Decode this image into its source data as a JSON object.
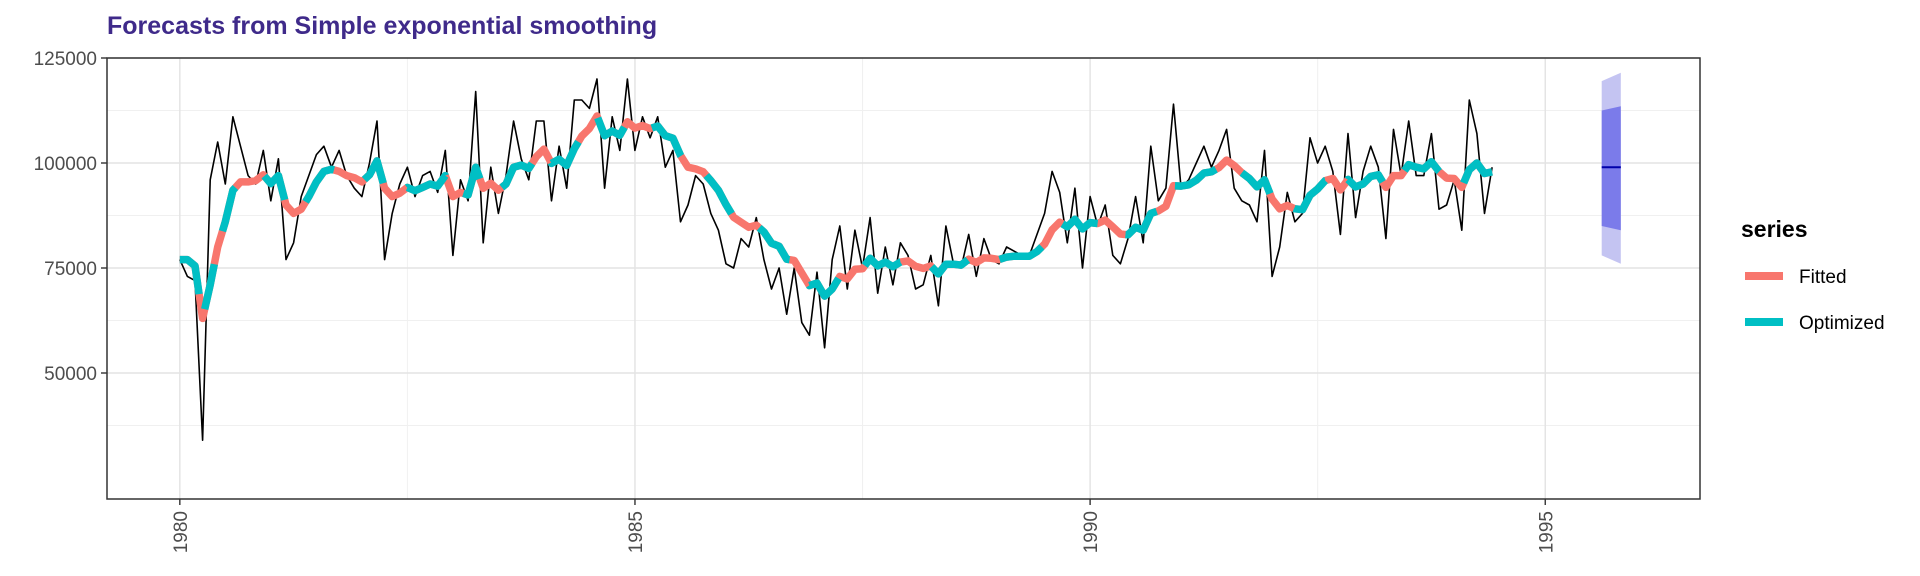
{
  "chart_data": {
    "type": "line",
    "title": "Forecasts from Simple exponential smoothing",
    "xlabel": "",
    "ylabel": "",
    "xlim": [
      1979.2,
      1996.7
    ],
    "ylim": [
      20000,
      125000
    ],
    "x_ticks": [
      1980,
      1985,
      1990,
      1995
    ],
    "x_tick_labels": [
      "1980",
      "1985",
      "1990",
      "1995"
    ],
    "y_ticks": [
      50000,
      75000,
      100000,
      125000
    ],
    "y_tick_labels": [
      "50000",
      "75000",
      "100000",
      "125000"
    ],
    "grid": true,
    "legend": {
      "title": "series",
      "position": "right",
      "entries": [
        {
          "label": "Fitted",
          "color": "#f8766d"
        },
        {
          "label": "Optimized",
          "color": "#00bfc4"
        }
      ]
    },
    "colors": {
      "data": "#000000",
      "fitted": "#f8766d",
      "optimized": "#00bfc4",
      "pi80": "#7b7bea",
      "pi95": "#c4c4f2",
      "forecast": "#0000aa",
      "title": "#3f2a8a"
    },
    "series": [
      {
        "id": "data",
        "x_start": 1980.0,
        "step": 0.08333,
        "values": [
          77000,
          73000,
          72000,
          34000,
          96000,
          105000,
          95000,
          111000,
          104000,
          97000,
          95000,
          103000,
          91000,
          101000,
          77000,
          81000,
          92000,
          97000,
          102000,
          104000,
          99000,
          103000,
          97000,
          94000,
          92000,
          100000,
          110000,
          77000,
          88000,
          95000,
          99000,
          92000,
          97000,
          98000,
          93000,
          103000,
          78000,
          96000,
          91000,
          117000,
          81000,
          99000,
          88000,
          97000,
          110000,
          101000,
          96000,
          110000,
          110000,
          91000,
          104000,
          94000,
          115000,
          115000,
          113000,
          120000,
          94000,
          111000,
          103000,
          120000,
          103000,
          111000,
          106000,
          111000,
          99000,
          103000,
          86000,
          90000,
          97000,
          95000,
          88000,
          84000,
          76000,
          75000,
          82000,
          80000,
          87000,
          77000,
          70000,
          75000,
          64000,
          75000,
          62000,
          59000,
          74000,
          56000,
          77000,
          85000,
          70000,
          84000,
          75000,
          87000,
          69000,
          80000,
          71000,
          81000,
          78000,
          70000,
          71000,
          78000,
          66000,
          85000,
          76000,
          75000,
          83000,
          73000,
          82000,
          77000,
          76000,
          80000,
          79000,
          78000,
          78000,
          83000,
          88000,
          98000,
          93000,
          81000,
          94000,
          75000,
          92000,
          85000,
          90000,
          78000,
          76000,
          82000,
          92000,
          81000,
          104000,
          91000,
          94000,
          114000,
          94000,
          96000,
          100000,
          104000,
          99000,
          103000,
          108000,
          94000,
          91000,
          90000,
          86000,
          103000,
          73000,
          80000,
          93000,
          86000,
          88000,
          106000,
          100000,
          104000,
          98000,
          83000,
          107000,
          87000,
          98000,
          104000,
          99000,
          82000,
          108000,
          97000,
          110000,
          97000,
          97000,
          107000,
          89000,
          90000,
          96000,
          84000,
          115000,
          107000,
          88000,
          99000
        ]
      },
      {
        "id": "fitted_optimized",
        "x_start": 1980.0,
        "step": 0.08333,
        "values": [
          77000,
          77000,
          75500,
          63000,
          71000,
          80000,
          86000,
          93500,
          95500,
          95500,
          95800,
          97200,
          95100,
          97000,
          90000,
          88000,
          89000,
          92000,
          95500,
          98000,
          98500,
          98000,
          97000,
          96500,
          95500,
          97200,
          100500,
          94000,
          92000,
          92800,
          94200,
          93400,
          94200,
          95000,
          94500,
          97000,
          92000,
          93000,
          92400,
          99000,
          94000,
          95200,
          93500,
          95000,
          99000,
          99500,
          98700,
          101500,
          103300,
          99900,
          100900,
          99400,
          103400,
          106400,
          108200,
          111200,
          106500,
          107600,
          106600,
          109800,
          108300,
          108900,
          108200,
          108800,
          106500,
          105900,
          101800,
          99000,
          98600,
          97900,
          95800,
          93500,
          90100,
          87100,
          85900,
          84700,
          85200,
          83600,
          80900,
          80200,
          77100,
          76800,
          73800,
          70800,
          71400,
          68300,
          70000,
          73000,
          72400,
          74700,
          74800,
          77300,
          75500,
          76400,
          75300,
          76400,
          76700,
          75400,
          74900,
          75500,
          73600,
          75900,
          75900,
          75700,
          77100,
          76300,
          77400,
          77300,
          77000,
          77600,
          77800,
          77800,
          77800,
          78900,
          80700,
          84100,
          85900,
          84800,
          86600,
          84300,
          85800,
          85600,
          86400,
          84800,
          83100,
          82900,
          84700,
          84000,
          88000,
          88600,
          89700,
          94600,
          94500,
          94800,
          95900,
          97600,
          97900,
          98900,
          100700,
          99400,
          97700,
          96300,
          94300,
          96000,
          91400,
          89100,
          89900,
          89100,
          88900,
          92300,
          93800,
          95800,
          96300,
          93600,
          96100,
          94300,
          95000,
          96800,
          97200,
          94200,
          97000,
          97000,
          99600,
          99000,
          98600,
          100300,
          98000,
          96400,
          96300,
          94200,
          98400,
          100000,
          97500,
          97900
        ]
      },
      {
        "id": "forecast",
        "x": [
          1995.62,
          1995.83
        ],
        "point_forecast": 99000,
        "lo80": 84000,
        "hi80": 113500,
        "lo95": 76000,
        "hi95": 121500
      }
    ]
  }
}
